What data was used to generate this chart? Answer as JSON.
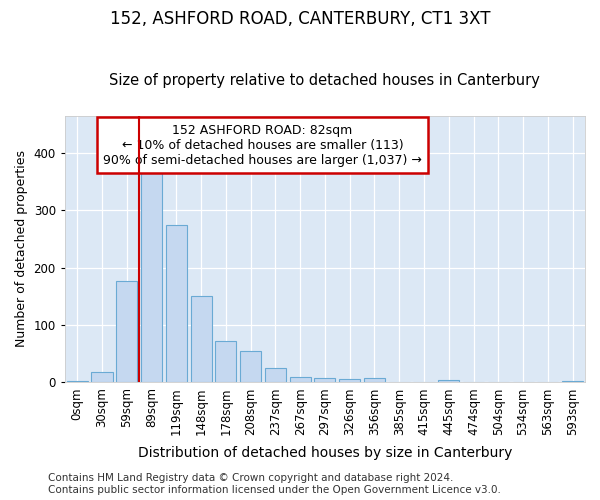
{
  "title1": "152, ASHFORD ROAD, CANTERBURY, CT1 3XT",
  "title2": "Size of property relative to detached houses in Canterbury",
  "xlabel": "Distribution of detached houses by size in Canterbury",
  "ylabel": "Number of detached properties",
  "bar_labels": [
    "0sqm",
    "30sqm",
    "59sqm",
    "89sqm",
    "119sqm",
    "148sqm",
    "178sqm",
    "208sqm",
    "237sqm",
    "267sqm",
    "297sqm",
    "326sqm",
    "356sqm",
    "385sqm",
    "415sqm",
    "445sqm",
    "474sqm",
    "504sqm",
    "534sqm",
    "563sqm",
    "593sqm"
  ],
  "bar_heights": [
    3,
    18,
    177,
    365,
    275,
    151,
    73,
    55,
    25,
    9,
    7,
    6,
    7,
    0,
    0,
    4,
    0,
    0,
    0,
    0,
    3
  ],
  "bar_color": "#c5d8f0",
  "bar_edge_color": "#6aaad4",
  "vline_x": 2.5,
  "vline_color": "#cc0000",
  "ylim": [
    0,
    465
  ],
  "annotation_text": "152 ASHFORD ROAD: 82sqm\n← 10% of detached houses are smaller (113)\n90% of semi-detached houses are larger (1,037) →",
  "annotation_box_edgecolor": "#cc0000",
  "footer": "Contains HM Land Registry data © Crown copyright and database right 2024.\nContains public sector information licensed under the Open Government Licence v3.0.",
  "fig_bg_color": "#ffffff",
  "plot_bg_color": "#dce8f5",
  "title1_fontsize": 12,
  "title2_fontsize": 10.5,
  "xlabel_fontsize": 10,
  "ylabel_fontsize": 9,
  "tick_fontsize": 8.5,
  "footer_fontsize": 7.5,
  "ann_fontsize": 9
}
